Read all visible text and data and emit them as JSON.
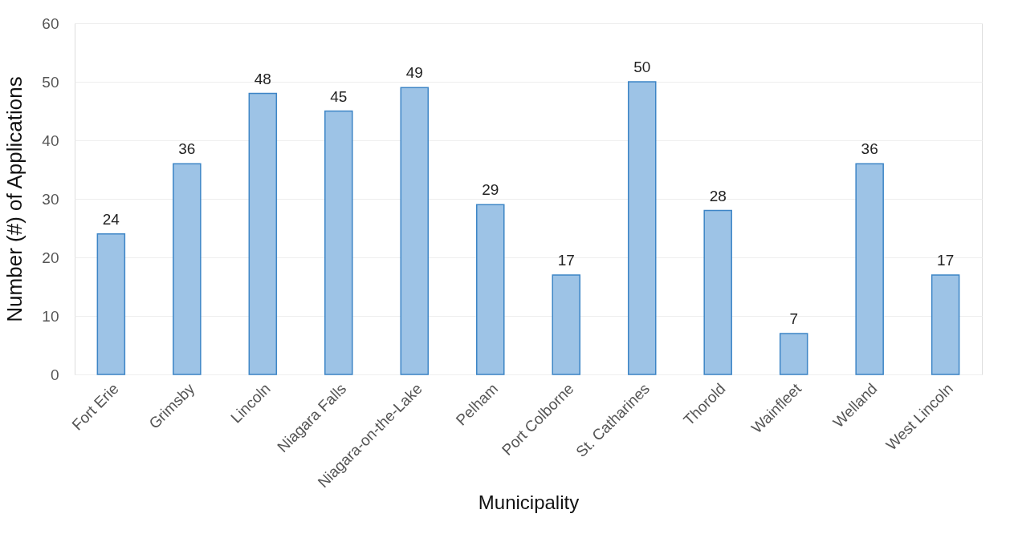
{
  "chart_data": {
    "type": "bar",
    "xlabel": "Municipality",
    "ylabel": "Number (#) of Applications",
    "categories": [
      "Fort Erie",
      "Grimsby",
      "Lincoln",
      "Niagara Falls",
      "Niagara-on-the-Lake",
      "Pelham",
      "Port Colborne",
      "St. Catharines",
      "Thorold",
      "Wainfleet",
      "Welland",
      "West Lincoln"
    ],
    "values": [
      24,
      36,
      48,
      45,
      49,
      29,
      17,
      50,
      28,
      7,
      36,
      17
    ],
    "color": "#9dc3e6",
    "ylim": [
      0,
      60
    ],
    "yticks": [
      0,
      10,
      20,
      30,
      40,
      50,
      60
    ],
    "grid": "y",
    "data_labels": true
  }
}
